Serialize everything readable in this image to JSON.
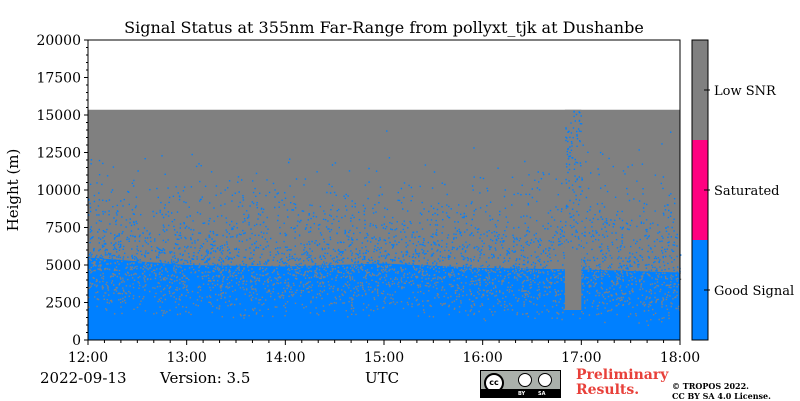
{
  "chart_data": {
    "type": "heatmap",
    "title": "Signal Status at 355nm Far-Range from pollyxt_tjk at Dushanbe",
    "xlabel": "",
    "ylabel": "Height (m)",
    "x_range": [
      "12:00",
      "18:00"
    ],
    "x_ticks": [
      "12:00",
      "13:00",
      "14:00",
      "15:00",
      "16:00",
      "17:00",
      "18:00"
    ],
    "ylim": [
      0,
      20000
    ],
    "y_ticks": [
      0,
      2500,
      5000,
      7500,
      10000,
      12500,
      15000,
      17500,
      20000
    ],
    "data_top_height_m": 15350,
    "gap": {
      "start": "16:50",
      "end": "17:00",
      "good_signal_top_m": 2000
    },
    "good_signal_top_m": [
      {
        "time": "12:00",
        "height": 5500
      },
      {
        "time": "13:00",
        "height": 5000
      },
      {
        "time": "14:00",
        "height": 4900
      },
      {
        "time": "15:00",
        "height": 5100
      },
      {
        "time": "16:00",
        "height": 4800
      },
      {
        "time": "17:00",
        "height": 4700
      },
      {
        "time": "18:00",
        "height": 4500
      }
    ],
    "categories": [
      "Good Signal",
      "Saturated",
      "Low SNR"
    ],
    "colorbar": [
      {
        "label": "Good Signal",
        "color": "#0080ff"
      },
      {
        "label": "Saturated",
        "color": "#ff0080"
      },
      {
        "label": "Low SNR",
        "color": "#808080"
      }
    ],
    "colors": {
      "good": "#0080ff",
      "saturated": "#ff0080",
      "low_snr": "#808080"
    }
  },
  "footer": {
    "date": "2022-09-13",
    "version": "Version: 3.5",
    "utc": "UTC",
    "preliminary_line1": "Preliminary",
    "preliminary_line2": "Results.",
    "copyright_line1": "© TROPOS 2022.",
    "copyright_line2": "CC BY SA 4.0 License.",
    "cc_icon_text": "cc",
    "cc_by": "BY",
    "cc_sa": "SA"
  }
}
